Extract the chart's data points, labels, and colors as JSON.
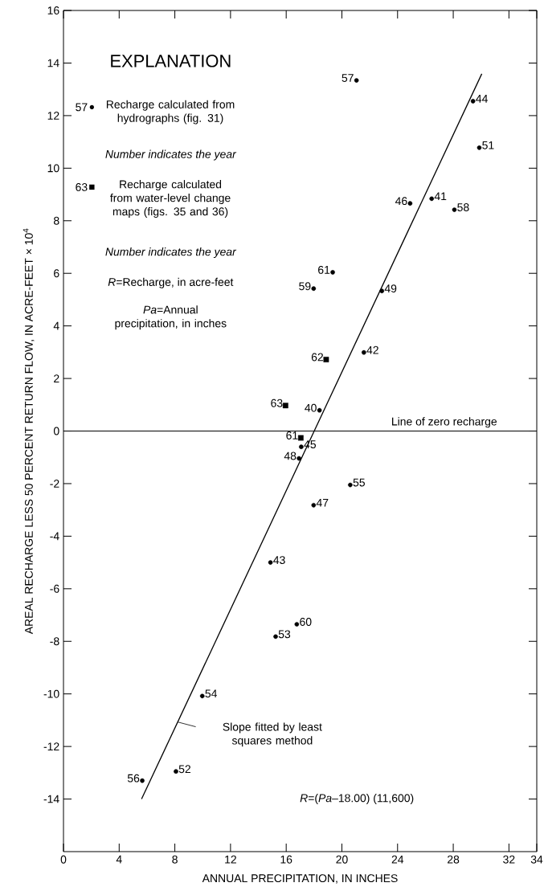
{
  "chart_data": {
    "type": "scatter",
    "xlabel": "ANNUAL PRECIPITATION, IN INCHES",
    "ylabel": "AREAL RECHARGE LESS 50 PERCENT RETURN FLOW, IN ACRE-FEET × 10$^{4}$",
    "legend_title": "EXPLANATION",
    "legend": "top left",
    "grid": false,
    "xlim": [
      0,
      34
    ],
    "ylim": [
      -16,
      16
    ],
    "xticks": [
      0,
      4,
      8,
      12,
      16,
      20,
      24,
      28,
      32,
      34
    ],
    "yticks": [
      -14,
      -12,
      -10,
      -8,
      -6,
      -4,
      -2,
      0,
      2,
      4,
      6,
      8,
      10,
      12,
      14,
      16
    ],
    "series": [
      {
        "name": "Recharge calculated from hydrographs (fig. 31)",
        "color": "#000000",
        "marker": "circle",
        "x": [
          21.05,
          29.42,
          29.87,
          24.9,
          26.45,
          28.08,
          19.34,
          17.97,
          22.87,
          21.58,
          18.39,
          17.08,
          16.92,
          20.6,
          17.97,
          14.87,
          16.76,
          15.24,
          9.97,
          8.08,
          5.66
        ],
        "values": [
          13.34,
          12.55,
          10.78,
          8.66,
          8.84,
          8.42,
          6.04,
          5.42,
          5.33,
          2.99,
          0.79,
          -0.6,
          -1.04,
          -2.05,
          -2.82,
          -5.0,
          -7.35,
          -7.82,
          -10.08,
          -12.95,
          -13.3
        ]
      },
      {
        "name": "Recharge calculated from water-level change maps (figs. 35 and 36)",
        "color": "#000000",
        "marker": "square",
        "x": [
          18.87,
          15.95,
          17.05
        ],
        "values": [
          2.72,
          0.97,
          -0.26
        ]
      },
      {
        "type": "line",
        "color": "#000000",
        "marker": "none",
        "line_style": "solid",
        "x": [
          5.61,
          30.05
        ],
        "values": [
          -14.0,
          13.59
        ]
      }
    ],
    "ref_lines": [
      {
        "axis": "y",
        "value": 0,
        "label": "Line of zero recharge",
        "color": "#000000"
      }
    ],
    "annotations": [
      "57",
      "Number indicates the year",
      "63",
      "Number indicates the year",
      "*R*=Recharge, in acre-feet",
      "*Pa*=Annual precipitation, in inches",
      "Slope fitted by least squares method",
      "*R*=(*Pa*–18.00) (11,600)",
      {
        "text": "57",
        "x": 21.05,
        "y": 13.34
      },
      {
        "text": "44",
        "x": 29.42,
        "y": 12.55
      },
      {
        "text": "51",
        "x": 29.87,
        "y": 10.78
      },
      {
        "text": "46",
        "x": 24.9,
        "y": 8.66
      },
      {
        "text": "41",
        "x": 26.45,
        "y": 8.84
      },
      {
        "text": "58",
        "x": 28.08,
        "y": 8.42
      },
      {
        "text": "61",
        "x": 19.34,
        "y": 6.04
      },
      {
        "text": "59",
        "x": 17.97,
        "y": 5.42
      },
      {
        "text": "49",
        "x": 22.87,
        "y": 5.33
      },
      {
        "text": "42",
        "x": 21.58,
        "y": 2.99
      },
      {
        "text": "62",
        "x": 18.87,
        "y": 2.72
      },
      {
        "text": "63",
        "x": 15.95,
        "y": 0.97
      },
      {
        "text": "40",
        "x": 18.39,
        "y": 0.79
      },
      {
        "text": "61",
        "x": 17.05,
        "y": -0.26
      },
      {
        "text": "45",
        "x": 17.08,
        "y": -0.6
      },
      {
        "text": "48",
        "x": 16.92,
        "y": -1.04
      },
      {
        "text": "55",
        "x": 20.6,
        "y": -2.05
      },
      {
        "text": "47",
        "x": 17.97,
        "y": -2.82
      },
      {
        "text": "43",
        "x": 14.87,
        "y": -5.0
      },
      {
        "text": "60",
        "x": 16.76,
        "y": -7.35
      },
      {
        "text": "53",
        "x": 15.24,
        "y": -7.82
      },
      {
        "text": "54",
        "x": 9.97,
        "y": -10.08
      },
      {
        "text": "52",
        "x": 8.08,
        "y": -12.95
      },
      {
        "text": "56",
        "x": 5.66,
        "y": -13.3
      }
    ]
  }
}
